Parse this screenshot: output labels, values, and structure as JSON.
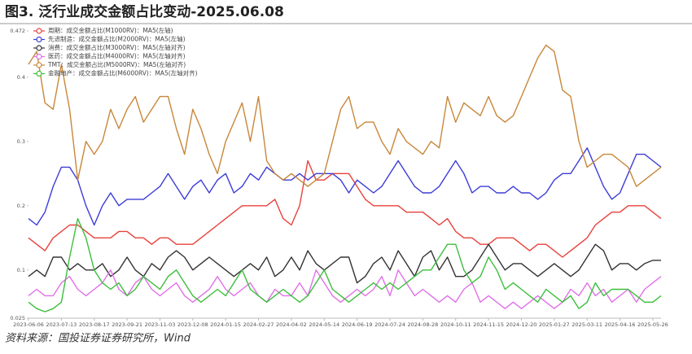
{
  "chart_data": {
    "type": "line",
    "title": "图3. 泛行业成交金额占比变动-2025.06.08",
    "source": "资料来源：国投证券证券研究所，Wind",
    "categories": [
      "2023-06-06",
      null,
      null,
      null,
      "2023-07-13",
      null,
      null,
      null,
      "2023-08-17",
      null,
      null,
      null,
      "2023-09-21",
      null,
      null,
      null,
      "2023-11-03",
      null,
      null,
      null,
      "2023-12-08",
      null,
      null,
      null,
      "2024-01-15",
      null,
      null,
      null,
      "2024-02-27",
      null,
      null,
      null,
      "2024-04-02",
      null,
      null,
      null,
      "2024-05-14",
      null,
      null,
      null,
      "2024-06-19",
      null,
      null,
      null,
      "2024-07-24",
      null,
      null,
      null,
      "2024-08-28",
      null,
      null,
      null,
      "2024-10-11",
      null,
      null,
      null,
      "2024-11-15",
      null,
      null,
      null,
      "2024-12-20",
      null,
      null,
      null,
      "2025-01-27",
      null,
      null,
      null,
      "2025-03-11",
      null,
      null,
      null,
      "2025-04-16",
      null,
      null,
      null,
      "2025-05-26",
      null
    ],
    "ylim": [
      0.025,
      0.472
    ],
    "yticks": [
      0.025,
      0.1,
      0.2,
      0.3,
      0.4,
      0.472
    ],
    "legend": "upper left",
    "series": [
      {
        "name": "周期：成交金额占比(M1000RV)：MA5(左轴)",
        "color": "#e8413c",
        "values": [
          0.15,
          0.14,
          0.13,
          0.15,
          0.16,
          0.17,
          0.17,
          0.16,
          0.15,
          0.15,
          0.15,
          0.16,
          0.16,
          0.15,
          0.15,
          0.14,
          0.15,
          0.15,
          0.14,
          0.14,
          0.14,
          0.15,
          0.16,
          0.17,
          0.18,
          0.19,
          0.2,
          0.2,
          0.2,
          0.2,
          0.21,
          0.18,
          0.17,
          0.2,
          0.27,
          0.24,
          0.24,
          0.25,
          0.25,
          0.25,
          0.23,
          0.21,
          0.2,
          0.2,
          0.2,
          0.2,
          0.19,
          0.19,
          0.19,
          0.18,
          0.17,
          0.18,
          0.16,
          0.15,
          0.15,
          0.14,
          0.14,
          0.15,
          0.15,
          0.15,
          0.14,
          0.13,
          0.14,
          0.14,
          0.13,
          0.12,
          0.13,
          0.14,
          0.15,
          0.17,
          0.18,
          0.19,
          0.19,
          0.2,
          0.2,
          0.2,
          0.19,
          0.18
        ]
      },
      {
        "name": "先进制造：成交金额占比(M2000RV)：MA5(左轴)",
        "color": "#3c3cd8",
        "values": [
          0.18,
          0.17,
          0.19,
          0.23,
          0.26,
          0.26,
          0.24,
          0.2,
          0.17,
          0.2,
          0.22,
          0.2,
          0.21,
          0.21,
          0.21,
          0.22,
          0.23,
          0.25,
          0.23,
          0.21,
          0.23,
          0.24,
          0.22,
          0.24,
          0.25,
          0.22,
          0.23,
          0.25,
          0.24,
          0.26,
          0.25,
          0.24,
          0.24,
          0.25,
          0.24,
          0.25,
          0.25,
          0.25,
          0.24,
          0.22,
          0.24,
          0.23,
          0.22,
          0.23,
          0.25,
          0.27,
          0.25,
          0.23,
          0.22,
          0.22,
          0.23,
          0.25,
          0.27,
          0.25,
          0.22,
          0.23,
          0.23,
          0.22,
          0.22,
          0.23,
          0.22,
          0.22,
          0.21,
          0.22,
          0.24,
          0.25,
          0.25,
          0.27,
          0.29,
          0.26,
          0.23,
          0.21,
          0.22,
          0.25,
          0.28,
          0.28,
          0.27,
          0.26
        ]
      },
      {
        "name": "消费：成交金额占比(M3000RV)：MA5(左轴对齐)",
        "color": "#333333",
        "values": [
          0.09,
          0.1,
          0.09,
          0.12,
          0.12,
          0.1,
          0.11,
          0.1,
          0.1,
          0.11,
          0.09,
          0.1,
          0.12,
          0.1,
          0.09,
          0.11,
          0.1,
          0.12,
          0.13,
          0.12,
          0.1,
          0.11,
          0.12,
          0.11,
          0.1,
          0.09,
          0.1,
          0.11,
          0.1,
          0.12,
          0.09,
          0.1,
          0.12,
          0.1,
          0.13,
          0.11,
          0.1,
          0.11,
          0.12,
          0.12,
          0.08,
          0.09,
          0.11,
          0.12,
          0.1,
          0.13,
          0.11,
          0.09,
          0.12,
          0.13,
          0.1,
          0.12,
          0.09,
          0.09,
          0.1,
          0.12,
          0.14,
          0.12,
          0.1,
          0.11,
          0.11,
          0.1,
          0.09,
          0.1,
          0.11,
          0.1,
          0.09,
          0.1,
          0.12,
          0.14,
          0.13,
          0.1,
          0.11,
          0.11,
          0.1,
          0.11,
          0.115,
          0.115
        ]
      },
      {
        "name": "医药：成交金额占比(M4000RV)：MA5(左轴对齐)",
        "color": "#e070e8",
        "values": [
          0.06,
          0.07,
          0.06,
          0.06,
          0.08,
          0.09,
          0.07,
          0.06,
          0.07,
          0.08,
          0.1,
          0.07,
          0.06,
          0.08,
          0.09,
          0.07,
          0.06,
          0.07,
          0.08,
          0.06,
          0.05,
          0.06,
          0.07,
          0.09,
          0.07,
          0.06,
          0.07,
          0.08,
          0.06,
          0.05,
          0.07,
          0.06,
          0.06,
          0.08,
          0.06,
          0.1,
          0.08,
          0.06,
          0.05,
          0.06,
          0.07,
          0.06,
          0.07,
          0.09,
          0.06,
          0.1,
          0.08,
          0.06,
          0.07,
          0.06,
          0.05,
          0.06,
          0.05,
          0.07,
          0.08,
          0.05,
          0.06,
          0.05,
          0.04,
          0.05,
          0.04,
          0.05,
          0.06,
          0.05,
          0.04,
          0.05,
          0.07,
          0.06,
          0.08,
          0.06,
          0.07,
          0.05,
          0.06,
          0.07,
          0.05,
          0.07,
          0.08,
          0.09
        ]
      },
      {
        "name": "TMT：成交金额占比(M5000RV)：MA5(左轴对齐)",
        "color": "#c8873a",
        "values": [
          0.42,
          0.44,
          0.36,
          0.35,
          0.42,
          0.35,
          0.24,
          0.3,
          0.28,
          0.3,
          0.35,
          0.32,
          0.35,
          0.37,
          0.33,
          0.35,
          0.37,
          0.37,
          0.32,
          0.28,
          0.35,
          0.32,
          0.28,
          0.25,
          0.3,
          0.33,
          0.36,
          0.3,
          0.37,
          0.27,
          0.25,
          0.24,
          0.25,
          0.24,
          0.23,
          0.24,
          0.25,
          0.3,
          0.35,
          0.37,
          0.32,
          0.33,
          0.33,
          0.3,
          0.28,
          0.32,
          0.3,
          0.29,
          0.28,
          0.3,
          0.29,
          0.37,
          0.33,
          0.36,
          0.35,
          0.34,
          0.37,
          0.34,
          0.33,
          0.34,
          0.37,
          0.4,
          0.43,
          0.45,
          0.44,
          0.38,
          0.37,
          0.3,
          0.26,
          0.27,
          0.28,
          0.28,
          0.27,
          0.26,
          0.23,
          0.24,
          0.25,
          0.26
        ]
      },
      {
        "name": "金融地产：成交金额占比(M6000RV)：MA5(左轴对齐)",
        "color": "#3cbf3c",
        "values": [
          0.05,
          0.04,
          0.035,
          0.04,
          0.05,
          0.12,
          0.18,
          0.15,
          0.1,
          0.08,
          0.07,
          0.08,
          0.06,
          0.07,
          0.09,
          0.08,
          0.07,
          0.09,
          0.1,
          0.08,
          0.06,
          0.05,
          0.06,
          0.07,
          0.06,
          0.08,
          0.1,
          0.07,
          0.06,
          0.05,
          0.06,
          0.07,
          0.06,
          0.05,
          0.06,
          0.08,
          0.1,
          0.07,
          0.06,
          0.05,
          0.06,
          0.07,
          0.08,
          0.07,
          0.08,
          0.07,
          0.08,
          0.09,
          0.1,
          0.1,
          0.12,
          0.14,
          0.14,
          0.1,
          0.08,
          0.09,
          0.12,
          0.1,
          0.07,
          0.08,
          0.07,
          0.06,
          0.05,
          0.07,
          0.06,
          0.05,
          0.06,
          0.04,
          0.05,
          0.08,
          0.06,
          0.07,
          0.07,
          0.07,
          0.06,
          0.05,
          0.05,
          0.06
        ]
      }
    ]
  }
}
